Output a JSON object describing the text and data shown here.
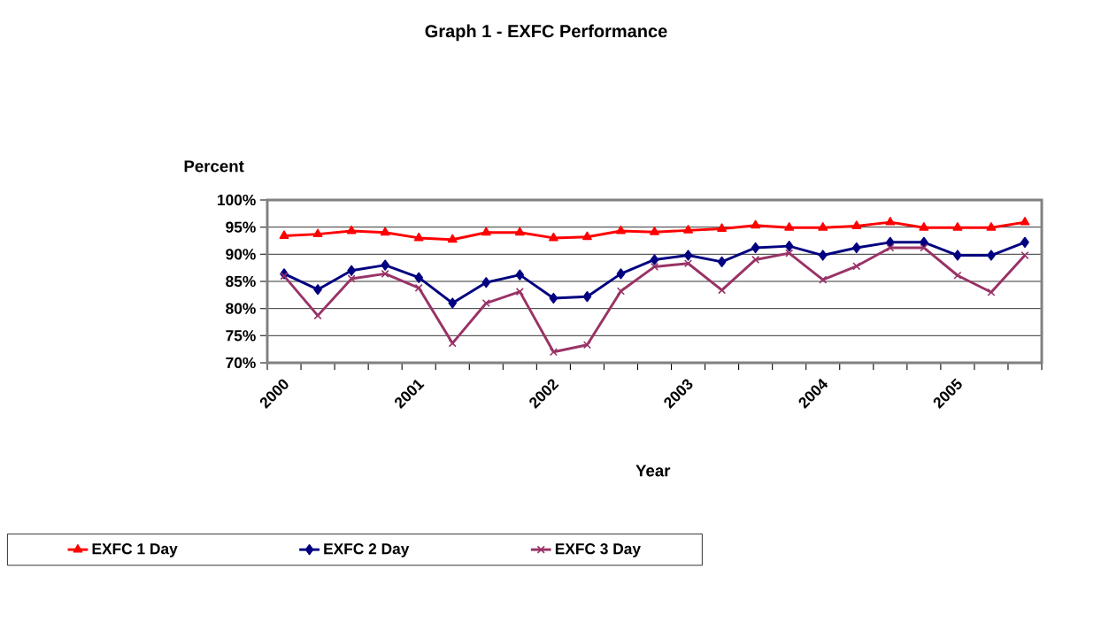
{
  "chart_data": {
    "type": "line",
    "title": "Graph 1 - EXFC  Performance",
    "xlabel": "Year",
    "ylabel": "Percent",
    "categories": [
      "2000",
      null,
      null,
      null,
      "2001",
      null,
      null,
      null,
      "2002",
      null,
      null,
      null,
      "2003",
      null,
      null,
      null,
      "2004",
      null,
      null,
      null,
      "2005",
      null,
      null
    ],
    "series": [
      {
        "name": "EXFC 1 Day",
        "color": "#ff0000",
        "marker": "triangle",
        "values": [
          93.4,
          93.7,
          94.3,
          94.0,
          93.0,
          92.7,
          94.0,
          94.0,
          93.0,
          93.2,
          94.3,
          94.1,
          94.4,
          94.7,
          95.3,
          94.9,
          94.9,
          95.2,
          95.9,
          94.9,
          94.9,
          94.9,
          95.9
        ]
      },
      {
        "name": "EXFC 2 Day",
        "color": "#000080",
        "marker": "diamond",
        "values": [
          86.4,
          83.5,
          87.0,
          88.0,
          85.7,
          81.0,
          84.8,
          86.2,
          81.9,
          82.2,
          86.4,
          89.0,
          89.8,
          88.6,
          91.2,
          91.5,
          89.8,
          91.2,
          92.2,
          92.2,
          89.8,
          89.8,
          92.2
        ]
      },
      {
        "name": "EXFC 3 Day",
        "color": "#993366",
        "marker": "cross",
        "values": [
          86.0,
          78.7,
          85.5,
          86.4,
          83.8,
          73.6,
          81.0,
          83.1,
          72.0,
          73.3,
          83.2,
          87.7,
          88.3,
          83.4,
          89.0,
          90.2,
          85.3,
          87.8,
          91.2,
          91.2,
          86.1,
          83.0,
          89.8
        ]
      }
    ],
    "ylim": [
      70,
      100
    ],
    "yticks": [
      {
        "value": 70,
        "label": "70%"
      },
      {
        "value": 75,
        "label": "75%"
      },
      {
        "value": 80,
        "label": "80%"
      },
      {
        "value": 85,
        "label": "85%"
      },
      {
        "value": 90,
        "label": "90%"
      },
      {
        "value": 95,
        "label": "95%"
      },
      {
        "value": 100,
        "label": "100%"
      }
    ],
    "grid": "y",
    "legend": "bottom",
    "line_style": "solid"
  }
}
